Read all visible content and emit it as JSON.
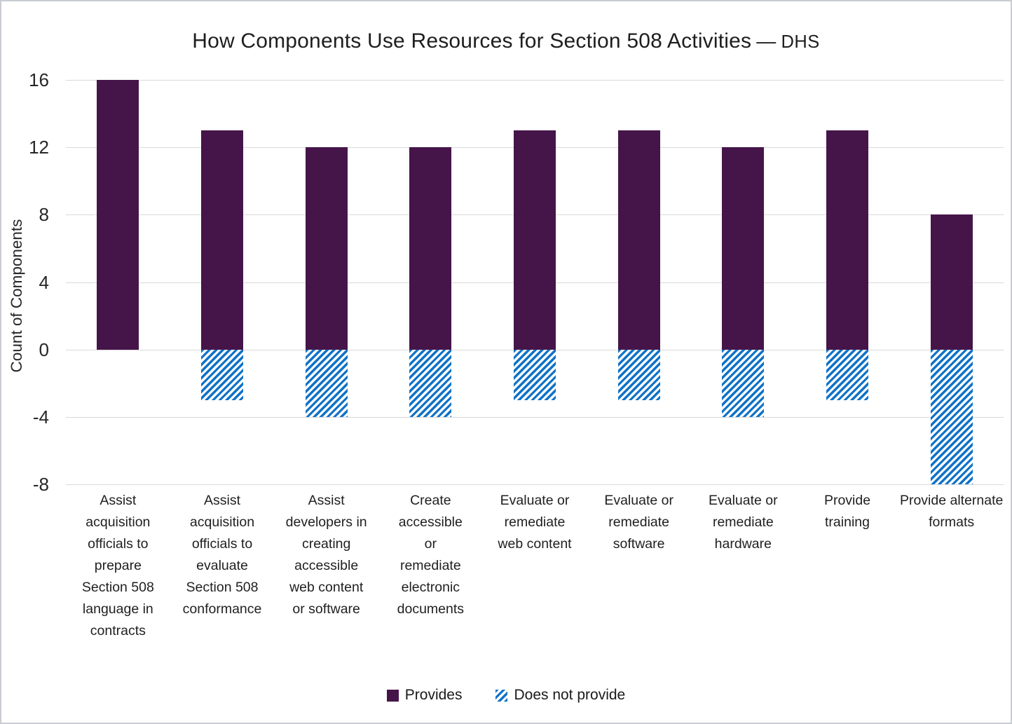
{
  "header": {
    "title_main": "How Components Use Resources for Section 508 Activities",
    "title_dash": "—",
    "title_suffix": "DHS"
  },
  "chart_data": {
    "type": "bar",
    "title": "How Components Use Resources for Section 508 Activities — DHS",
    "xlabel": "",
    "ylabel": "Count of Components",
    "ylim": [
      -8,
      16
    ],
    "yticks": [
      16,
      12,
      8,
      4,
      0,
      -4,
      -8
    ],
    "grid": true,
    "legend_position": "bottom",
    "bar_orientation": "vertical",
    "categories": [
      "Assist acquisition officials to prepare Section 508 language in contracts",
      "Assist acquisition officials to evaluate Section 508 conformance",
      "Assist developers in creating accessible web content or software",
      "Create accessible or remediate electronic documents",
      "Evaluate or remediate web content",
      "Evaluate or remediate software",
      "Evaluate or remediate hardware",
      "Provide training",
      "Provide alternate formats"
    ],
    "categories_wrapped": [
      [
        "Assist",
        "acquisition",
        "officials to",
        "prepare",
        "Section 508",
        "language in",
        "contracts"
      ],
      [
        "Assist",
        "acquisition",
        "officials to",
        "evaluate",
        "Section 508",
        "conformance"
      ],
      [
        "Assist",
        "developers in",
        "creating",
        "accessible",
        "web content",
        "or software"
      ],
      [
        "Create",
        "accessible",
        "or",
        "remediate",
        "electronic",
        "documents"
      ],
      [
        "Evaluate or",
        "remediate",
        "web content"
      ],
      [
        "Evaluate or",
        "remediate",
        "software"
      ],
      [
        "Evaluate or",
        "remediate",
        "hardware"
      ],
      [
        "Provide",
        "training"
      ],
      [
        "Provide alternate",
        "formats"
      ]
    ],
    "series": [
      {
        "name": "Provides",
        "color": "#451549",
        "pattern": "solid",
        "values": [
          16,
          13,
          12,
          12,
          13,
          13,
          12,
          13,
          8
        ]
      },
      {
        "name": "Does not provide",
        "color": "#1072C7",
        "pattern": "diagonal-hatch",
        "values": [
          0,
          -3,
          -4,
          -4,
          -3,
          -3,
          -4,
          -3,
          -8
        ]
      }
    ]
  }
}
